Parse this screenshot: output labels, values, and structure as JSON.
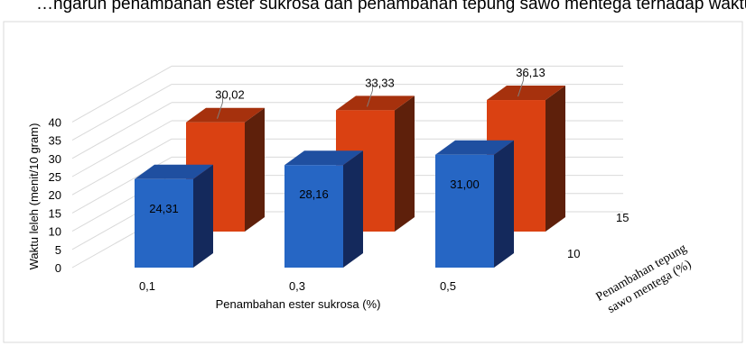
{
  "title": "…ngaruh penambahan ester sukrosa dan penambahan tepung sawo mentega terhadap waktu leleh es krim…",
  "chart_data": {
    "type": "bar3d",
    "xlabel": "Penambahan ester sukrosa (%)",
    "ylabel": "Waktu leleh (menit/10 gram)",
    "zlabel": "Penambahan tepung sawo mentega (%)",
    "categories": [
      "0,1",
      "0,3",
      "0,5"
    ],
    "depth_categories": [
      "10",
      "15"
    ],
    "yticks": [
      "0",
      "5",
      "10",
      "15",
      "20",
      "25",
      "30",
      "35",
      "40"
    ],
    "ylim": [
      0,
      40
    ],
    "series": [
      {
        "depth": "10",
        "values": [
          24.31,
          28.16,
          31.0
        ],
        "labels": [
          "24,31",
          "28,16",
          "31,00"
        ],
        "color": "#2666C4",
        "side_color": "#14295C",
        "top_color": "#1F4FA0"
      },
      {
        "depth": "15",
        "values": [
          30.02,
          33.33,
          36.13
        ],
        "labels": [
          "30,02",
          "33,33",
          "36,13"
        ],
        "color": "#DA4112",
        "side_color": "#5E200B",
        "top_color": "#A6310D"
      }
    ],
    "grid": true,
    "frame_color": "#D9D9D9"
  }
}
